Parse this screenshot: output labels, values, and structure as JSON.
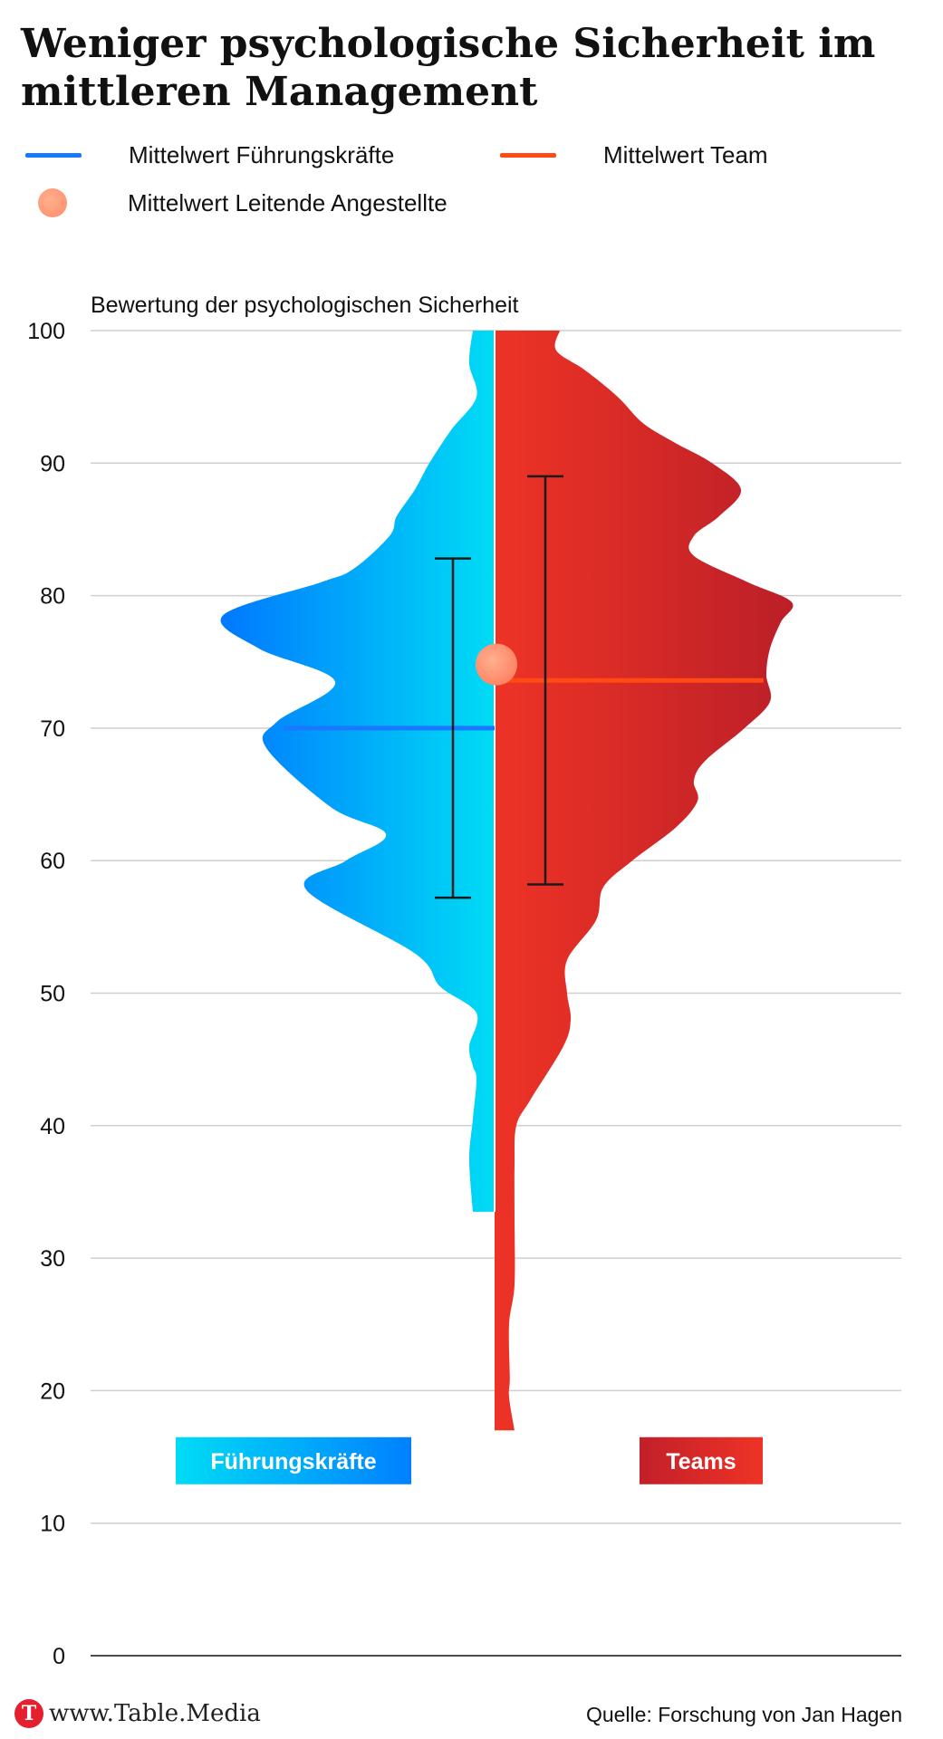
{
  "title": "Weniger psychologische Sicherheit im mittleren Management",
  "legend": {
    "leaders_mean": "Mittelwert Führungskräfte",
    "team_mean": "Mittelwert Team",
    "middle_mean": "Mittelwert Leitende Angestellte"
  },
  "colors": {
    "leaders_light": "#00dcf5",
    "leaders_dark": "#0078ff",
    "teams_light": "#ee3326",
    "teams_dark": "#bb1f28",
    "leaders_mean_line": "#1a78ff",
    "team_mean_line": "#ff4a14",
    "middle_mean_dot": "#ff9270",
    "grid": "#cfcfcf"
  },
  "footer": {
    "logo_letter": "T",
    "brand": "www.Table.Media",
    "source": "Quelle: Forschung von Jan Hagen"
  },
  "chart_data": {
    "type": "violin",
    "ylabel": "Bewertung der psychologischen Sicherheit",
    "ylim": [
      0,
      100
    ],
    "yticks": [
      0,
      10,
      20,
      30,
      40,
      50,
      60,
      70,
      80,
      90,
      100
    ],
    "grid": true,
    "series": [
      {
        "name": "Führungskräfte",
        "side": "left",
        "range": [
          33.5,
          100
        ],
        "mean": 70,
        "whisker_low": 57.2,
        "whisker_high": 82.8,
        "density": [
          [
            33.5,
            0.06
          ],
          [
            37.5,
            0.07
          ],
          [
            40.5,
            0.06
          ],
          [
            43.5,
            0.05
          ],
          [
            44.5,
            0.06
          ],
          [
            46,
            0.07
          ],
          [
            48.5,
            0.05
          ],
          [
            50.5,
            0.15
          ],
          [
            53,
            0.22
          ],
          [
            57.8,
            0.52
          ],
          [
            60,
            0.41
          ],
          [
            62,
            0.3
          ],
          [
            64,
            0.45
          ],
          [
            68.5,
            0.63
          ],
          [
            70.5,
            0.6
          ],
          [
            73.5,
            0.44
          ],
          [
            76,
            0.65
          ],
          [
            78.5,
            0.75
          ],
          [
            81,
            0.48
          ],
          [
            82,
            0.39
          ],
          [
            84.5,
            0.29
          ],
          [
            86,
            0.27
          ],
          [
            88,
            0.22
          ],
          [
            90,
            0.18
          ],
          [
            92.5,
            0.12
          ],
          [
            95,
            0.05
          ],
          [
            97.5,
            0.07
          ],
          [
            100,
            0.06
          ]
        ]
      },
      {
        "name": "Teams",
        "side": "right",
        "range": [
          17,
          100
        ],
        "mean": 73.6,
        "whisker_low": 58.2,
        "whisker_high": 89,
        "density": [
          [
            17,
            0.055
          ],
          [
            19.5,
            0.04
          ],
          [
            21,
            0.042
          ],
          [
            25,
            0.04
          ],
          [
            28,
            0.055
          ],
          [
            33,
            0.055
          ],
          [
            37,
            0.055
          ],
          [
            40,
            0.06
          ],
          [
            42,
            0.1
          ],
          [
            46,
            0.19
          ],
          [
            48,
            0.21
          ],
          [
            50,
            0.2
          ],
          [
            52.5,
            0.2
          ],
          [
            55.5,
            0.28
          ],
          [
            58,
            0.3
          ],
          [
            60,
            0.38
          ],
          [
            62.5,
            0.5
          ],
          [
            64.5,
            0.56
          ],
          [
            66,
            0.55
          ],
          [
            67.5,
            0.58
          ],
          [
            70,
            0.69
          ],
          [
            72,
            0.76
          ],
          [
            74,
            0.75
          ],
          [
            76,
            0.76
          ],
          [
            78,
            0.79
          ],
          [
            79.5,
            0.82
          ],
          [
            81,
            0.7
          ],
          [
            83,
            0.55
          ],
          [
            84.5,
            0.55
          ],
          [
            86,
            0.62
          ],
          [
            88,
            0.68
          ],
          [
            90,
            0.6
          ],
          [
            91.5,
            0.5
          ],
          [
            93,
            0.41
          ],
          [
            95,
            0.34
          ],
          [
            97,
            0.25
          ],
          [
            98.5,
            0.17
          ],
          [
            100,
            0.18
          ]
        ]
      }
    ],
    "middle_management_mean": 74.8,
    "category_labels": [
      "Führungskräfte",
      "Teams"
    ]
  }
}
